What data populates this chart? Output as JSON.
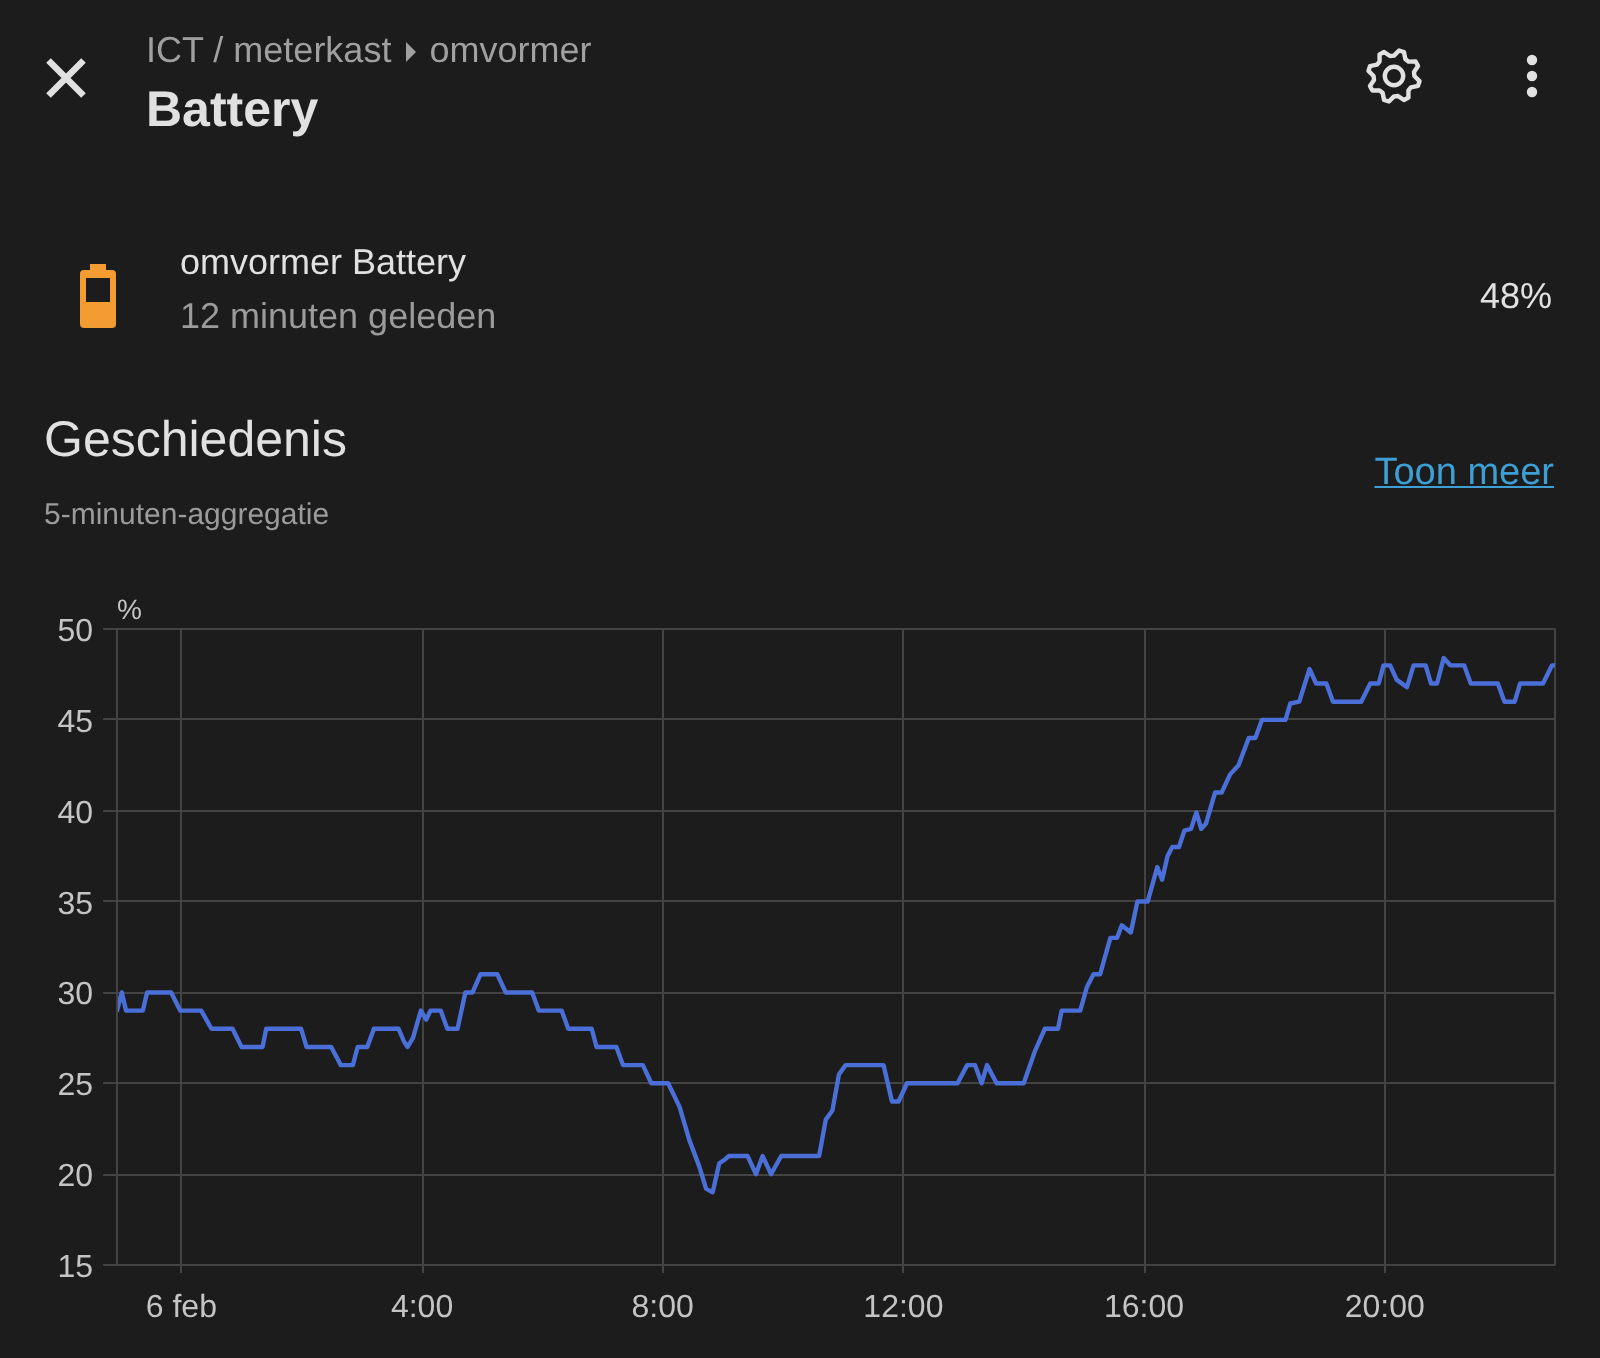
{
  "chart_data": {
    "type": "line",
    "title": "Geschiedenis",
    "subtitle": "5-minuten-aggregatie",
    "ylabel": "%",
    "annotations": [
      "ICT / meterkast",
      "omvormer",
      "Battery",
      "omvormer Battery",
      "12 minuten geleden",
      "48%",
      "Toon meer"
    ],
    "x": [
      -1.07,
      -0.99,
      -0.92,
      -0.64,
      -0.57,
      -0.17,
      -0.02,
      0.33,
      0.5,
      0.85,
      1.0,
      1.35,
      1.41,
      1.99,
      2.08,
      2.49,
      2.65,
      2.85,
      2.93,
      3.09,
      3.2,
      3.61,
      3.7,
      3.76,
      3.85,
      3.98,
      4.07,
      4.14,
      4.31,
      4.42,
      4.59,
      4.72,
      4.84,
      4.97,
      5.25,
      5.39,
      5.83,
      5.94,
      6.32,
      6.43,
      6.82,
      6.9,
      7.23,
      7.34,
      7.67,
      7.81,
      8.09,
      8.28,
      8.44,
      8.61,
      8.72,
      8.83,
      8.94,
      9.03,
      9.1,
      9.41,
      9.55,
      9.66,
      9.8,
      9.97,
      10.6,
      10.71,
      10.82,
      10.93,
      11.04,
      11.67,
      11.81,
      11.92,
      12.06,
      12.9,
      13.06,
      13.19,
      13.3,
      13.39,
      13.55,
      14.0,
      14.19,
      14.35,
      14.57,
      14.63,
      14.94,
      15.05,
      15.16,
      15.27,
      15.44,
      15.55,
      15.63,
      15.78,
      15.89,
      16.06,
      16.22,
      16.3,
      16.39,
      16.47,
      16.58,
      16.67,
      16.78,
      16.87,
      16.95,
      17.03,
      17.18,
      17.29,
      17.43,
      17.57,
      17.74,
      17.85,
      17.96,
      18.35,
      18.43,
      18.58,
      18.75,
      18.86,
      19.03,
      19.14,
      19.61,
      19.76,
      19.9,
      19.98,
      20.09,
      20.2,
      20.37,
      20.48,
      20.68,
      20.77,
      20.87,
      20.98,
      21.09,
      21.32,
      21.43,
      21.88,
      21.99,
      22.16,
      22.25,
      22.63,
      22.78,
      22.83
    ],
    "values": [
      29,
      30,
      29,
      29,
      30,
      30,
      29,
      29,
      28,
      28,
      27,
      27,
      28,
      28,
      27,
      27,
      26,
      26,
      27,
      27,
      28,
      28,
      27.3,
      27,
      27.5,
      29,
      28.5,
      29,
      29,
      28,
      28,
      30,
      30,
      31,
      31,
      30,
      30,
      29,
      29,
      28,
      28,
      27,
      27,
      26,
      26,
      25,
      25,
      23.7,
      21.9,
      20.4,
      19.2,
      19,
      20.6,
      20.8,
      21,
      21,
      20,
      21,
      20,
      21,
      21,
      23,
      23.5,
      25.5,
      26,
      26,
      24,
      24,
      25,
      25,
      26,
      26,
      25,
      26,
      25,
      25,
      26.8,
      28,
      28,
      29,
      29,
      30.3,
      31,
      31,
      33,
      33,
      33.7,
      33.3,
      35,
      35,
      36.9,
      36.2,
      37.5,
      38,
      38,
      38.9,
      39,
      39.9,
      39,
      39.3,
      41,
      41,
      42,
      42.5,
      44,
      44,
      45,
      45,
      45.9,
      46,
      47.8,
      47,
      47,
      46,
      46,
      47,
      47,
      48,
      48,
      47.2,
      46.8,
      48,
      48,
      47,
      47,
      48.4,
      48,
      48,
      47,
      47,
      46,
      46,
      47,
      47,
      48,
      48
    ],
    "color": "#4a6fd8",
    "xlim": [
      -1.07,
      22.83
    ],
    "xticks": [
      {
        "value": 0,
        "label": "6 feb"
      },
      {
        "value": 4,
        "label": "4:00"
      },
      {
        "value": 8,
        "label": "8:00"
      },
      {
        "value": 12,
        "label": "12:00"
      },
      {
        "value": 16,
        "label": "16:00"
      },
      {
        "value": 20,
        "label": "20:00"
      }
    ],
    "ylim": [
      15,
      50
    ],
    "yticks": [
      15,
      20,
      25,
      30,
      35,
      40,
      45,
      50
    ],
    "grid": true
  }
}
